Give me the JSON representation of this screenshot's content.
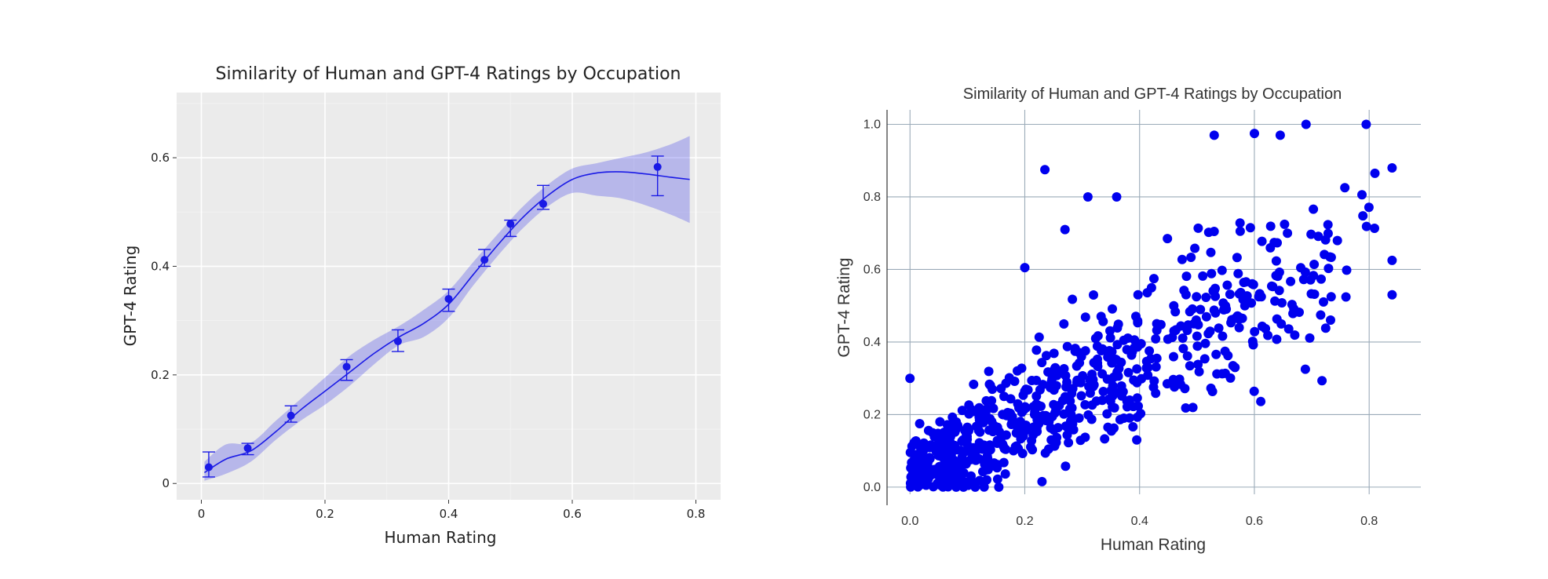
{
  "chart_data": [
    {
      "type": "line",
      "title": "Similarity of Human and GPT-4 Ratings by Occupation",
      "xlabel": "Human Rating",
      "ylabel": "GPT-4 Rating",
      "xlim": [
        -0.04,
        0.84
      ],
      "ylim": [
        -0.03,
        0.72
      ],
      "xticks": [
        "0",
        "0.2",
        "0.4",
        "0.6",
        "0.8"
      ],
      "yticks": [
        "0",
        "0.2",
        "0.4",
        "0.6"
      ],
      "grid": true,
      "legend": "none",
      "colors": {
        "accent": "#1a1ae6",
        "band": "#b3b3f2",
        "panel": "#ebebeb"
      },
      "points": [
        {
          "x": 0.012,
          "y": 0.03,
          "err_low": 0.012,
          "err_high": 0.058
        },
        {
          "x": 0.075,
          "y": 0.065,
          "err_low": 0.053,
          "err_high": 0.074
        },
        {
          "x": 0.145,
          "y": 0.125,
          "err_low": 0.113,
          "err_high": 0.143
        },
        {
          "x": 0.235,
          "y": 0.215,
          "err_low": 0.19,
          "err_high": 0.228
        },
        {
          "x": 0.318,
          "y": 0.262,
          "err_low": 0.243,
          "err_high": 0.283
        },
        {
          "x": 0.4,
          "y": 0.34,
          "err_low": 0.317,
          "err_high": 0.358
        },
        {
          "x": 0.458,
          "y": 0.412,
          "err_low": 0.4,
          "err_high": 0.431
        },
        {
          "x": 0.5,
          "y": 0.478,
          "err_low": 0.455,
          "err_high": 0.485
        },
        {
          "x": 0.553,
          "y": 0.515,
          "err_low": 0.505,
          "err_high": 0.549
        },
        {
          "x": 0.738,
          "y": 0.583,
          "err_low": 0.53,
          "err_high": 0.603
        }
      ],
      "fit": {
        "x": [
          0.005,
          0.04,
          0.08,
          0.12,
          0.16,
          0.2,
          0.24,
          0.28,
          0.32,
          0.36,
          0.4,
          0.44,
          0.48,
          0.52,
          0.56,
          0.6,
          0.64,
          0.68,
          0.72,
          0.76,
          0.79
        ],
        "y": [
          0.02,
          0.045,
          0.06,
          0.095,
          0.135,
          0.17,
          0.205,
          0.24,
          0.27,
          0.295,
          0.33,
          0.385,
          0.44,
          0.49,
          0.53,
          0.56,
          0.572,
          0.574,
          0.57,
          0.564,
          0.56
        ],
        "lower": [
          0.005,
          0.018,
          0.04,
          0.08,
          0.115,
          0.145,
          0.18,
          0.22,
          0.255,
          0.27,
          0.305,
          0.365,
          0.42,
          0.47,
          0.51,
          0.535,
          0.53,
          0.525,
          0.512,
          0.495,
          0.48
        ],
        "upper": [
          0.04,
          0.072,
          0.075,
          0.115,
          0.155,
          0.195,
          0.235,
          0.265,
          0.29,
          0.32,
          0.355,
          0.408,
          0.46,
          0.51,
          0.55,
          0.58,
          0.59,
          0.6,
          0.61,
          0.625,
          0.64
        ]
      }
    },
    {
      "type": "scatter",
      "title": "Similarity of Human and GPT-4 Ratings by Occupation",
      "xlabel": "Human Rating",
      "ylabel": "GPT-4 Rating",
      "xlim": [
        -0.04,
        0.89
      ],
      "ylim": [
        -0.05,
        1.04
      ],
      "xticks": [
        "0.0",
        "0.2",
        "0.4",
        "0.6",
        "0.8"
      ],
      "yticks": [
        "0.0",
        "0.2",
        "0.4",
        "0.6",
        "0.8",
        "1.0"
      ],
      "grid": true,
      "legend": "none",
      "colors": {
        "marker": "#0000ee",
        "grid": "#9aaab8"
      },
      "n_points": 700
    }
  ]
}
